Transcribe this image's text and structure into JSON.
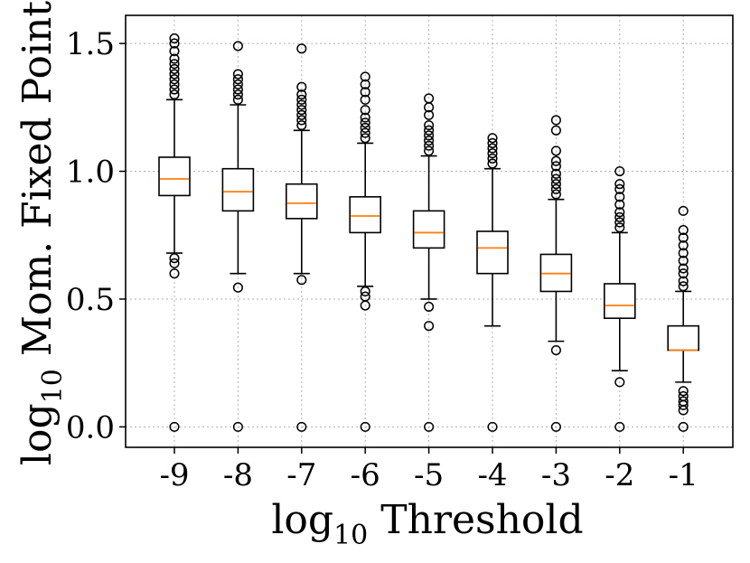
{
  "chart_data": {
    "type": "box",
    "title": "",
    "xlabel": {
      "prefix": "log",
      "subscript": "10",
      "text": " Threshold"
    },
    "ylabel": {
      "prefix": "log",
      "subscript": "10",
      "text": " Mom. Fixed Point"
    },
    "categories": [
      "-9",
      "-8",
      "-7",
      "-6",
      "-5",
      "-4",
      "-3",
      "-2",
      "-1"
    ],
    "ylim": [
      -0.08,
      1.61
    ],
    "yticks": [
      {
        "value": 0.0,
        "label": "0.0"
      },
      {
        "value": 0.5,
        "label": "0.5"
      },
      {
        "value": 1.0,
        "label": "1.0"
      },
      {
        "value": 1.5,
        "label": "1.5"
      }
    ],
    "grid": true,
    "colors": {
      "box": "#000000",
      "median": "#ff7f0e",
      "grid": "#b0b0b0"
    },
    "boxes": [
      {
        "category": "-9",
        "whisker_low": 0.68,
        "q1": 0.905,
        "median": 0.97,
        "q3": 1.055,
        "whisker_high": 1.28,
        "outliers": [
          0.0,
          0.6,
          0.64,
          0.66,
          1.3,
          1.32,
          1.34,
          1.36,
          1.38,
          1.4,
          1.42,
          1.44,
          1.47,
          1.5,
          1.52
        ]
      },
      {
        "category": "-8",
        "whisker_low": 0.6,
        "q1": 0.845,
        "median": 0.92,
        "q3": 1.01,
        "whisker_high": 1.26,
        "outliers": [
          0.0,
          0.545,
          1.28,
          1.3,
          1.32,
          1.34,
          1.36,
          1.38,
          1.49
        ]
      },
      {
        "category": "-7",
        "whisker_low": 0.6,
        "q1": 0.815,
        "median": 0.875,
        "q3": 0.95,
        "whisker_high": 1.16,
        "outliers": [
          0.0,
          0.575,
          1.18,
          1.2,
          1.22,
          1.24,
          1.26,
          1.28,
          1.3,
          1.33,
          1.48
        ]
      },
      {
        "category": "-6",
        "whisker_low": 0.55,
        "q1": 0.76,
        "median": 0.825,
        "q3": 0.9,
        "whisker_high": 1.11,
        "outliers": [
          0.0,
          0.475,
          0.51,
          0.53,
          1.13,
          1.15,
          1.17,
          1.19,
          1.21,
          1.24,
          1.28,
          1.31,
          1.34,
          1.37
        ]
      },
      {
        "category": "-5",
        "whisker_low": 0.5,
        "q1": 0.7,
        "median": 0.76,
        "q3": 0.845,
        "whisker_high": 1.06,
        "outliers": [
          0.0,
          0.395,
          0.47,
          1.08,
          1.1,
          1.12,
          1.14,
          1.16,
          1.18,
          1.22,
          1.25,
          1.285
        ]
      },
      {
        "category": "-4",
        "whisker_low": 0.395,
        "q1": 0.6,
        "median": 0.7,
        "q3": 0.765,
        "whisker_high": 1.01,
        "outliers": [
          0.0,
          1.03,
          1.05,
          1.07,
          1.09,
          1.11,
          1.13
        ]
      },
      {
        "category": "-3",
        "whisker_low": 0.335,
        "q1": 0.53,
        "median": 0.6,
        "q3": 0.675,
        "whisker_high": 0.89,
        "outliers": [
          0.0,
          0.3,
          0.91,
          0.93,
          0.95,
          0.97,
          0.99,
          1.02,
          1.04,
          1.08,
          1.16,
          1.2
        ]
      },
      {
        "category": "-2",
        "whisker_low": 0.22,
        "q1": 0.425,
        "median": 0.475,
        "q3": 0.56,
        "whisker_high": 0.76,
        "outliers": [
          0.0,
          0.175,
          0.78,
          0.8,
          0.82,
          0.84,
          0.87,
          0.9,
          0.93,
          0.95,
          1.0
        ]
      },
      {
        "category": "-1",
        "whisker_low": 0.175,
        "q1": 0.3,
        "median": 0.3,
        "q3": 0.395,
        "whisker_high": 0.53,
        "outliers": [
          0.0,
          0.065,
          0.085,
          0.1,
          0.12,
          0.14,
          0.55,
          0.57,
          0.6,
          0.62,
          0.65,
          0.68,
          0.71,
          0.74,
          0.77,
          0.845
        ]
      }
    ]
  }
}
